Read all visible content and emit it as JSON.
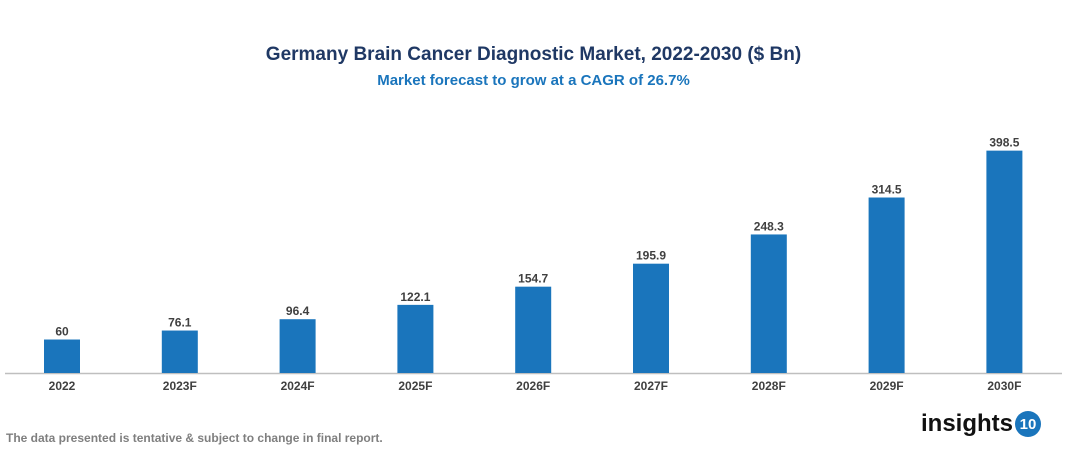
{
  "chart_data": {
    "type": "bar",
    "title": "Germany Brain Cancer Diagnostic Market, 2022-2030 ($ Bn)",
    "subtitle": "Market forecast to grow at a CAGR of 26.7%",
    "categories": [
      "2022",
      "2023F",
      "2024F",
      "2025F",
      "2026F",
      "2027F",
      "2028F",
      "2029F",
      "2030F"
    ],
    "values": [
      60,
      76.1,
      96.4,
      122.1,
      154.7,
      195.9,
      248.3,
      314.5,
      398.5
    ],
    "value_labels": [
      "60",
      "76.1",
      "96.4",
      "122.1",
      "154.7",
      "195.9",
      "248.3",
      "314.5",
      "398.5"
    ],
    "xlabel": "",
    "ylabel": "",
    "ylim": [
      0,
      420
    ],
    "grid": false,
    "bar_color": "#1a75bc"
  },
  "footer": {
    "note": "The data presented is tentative & subject to change in final report."
  },
  "logo": {
    "text": "insights",
    "number": "10"
  }
}
